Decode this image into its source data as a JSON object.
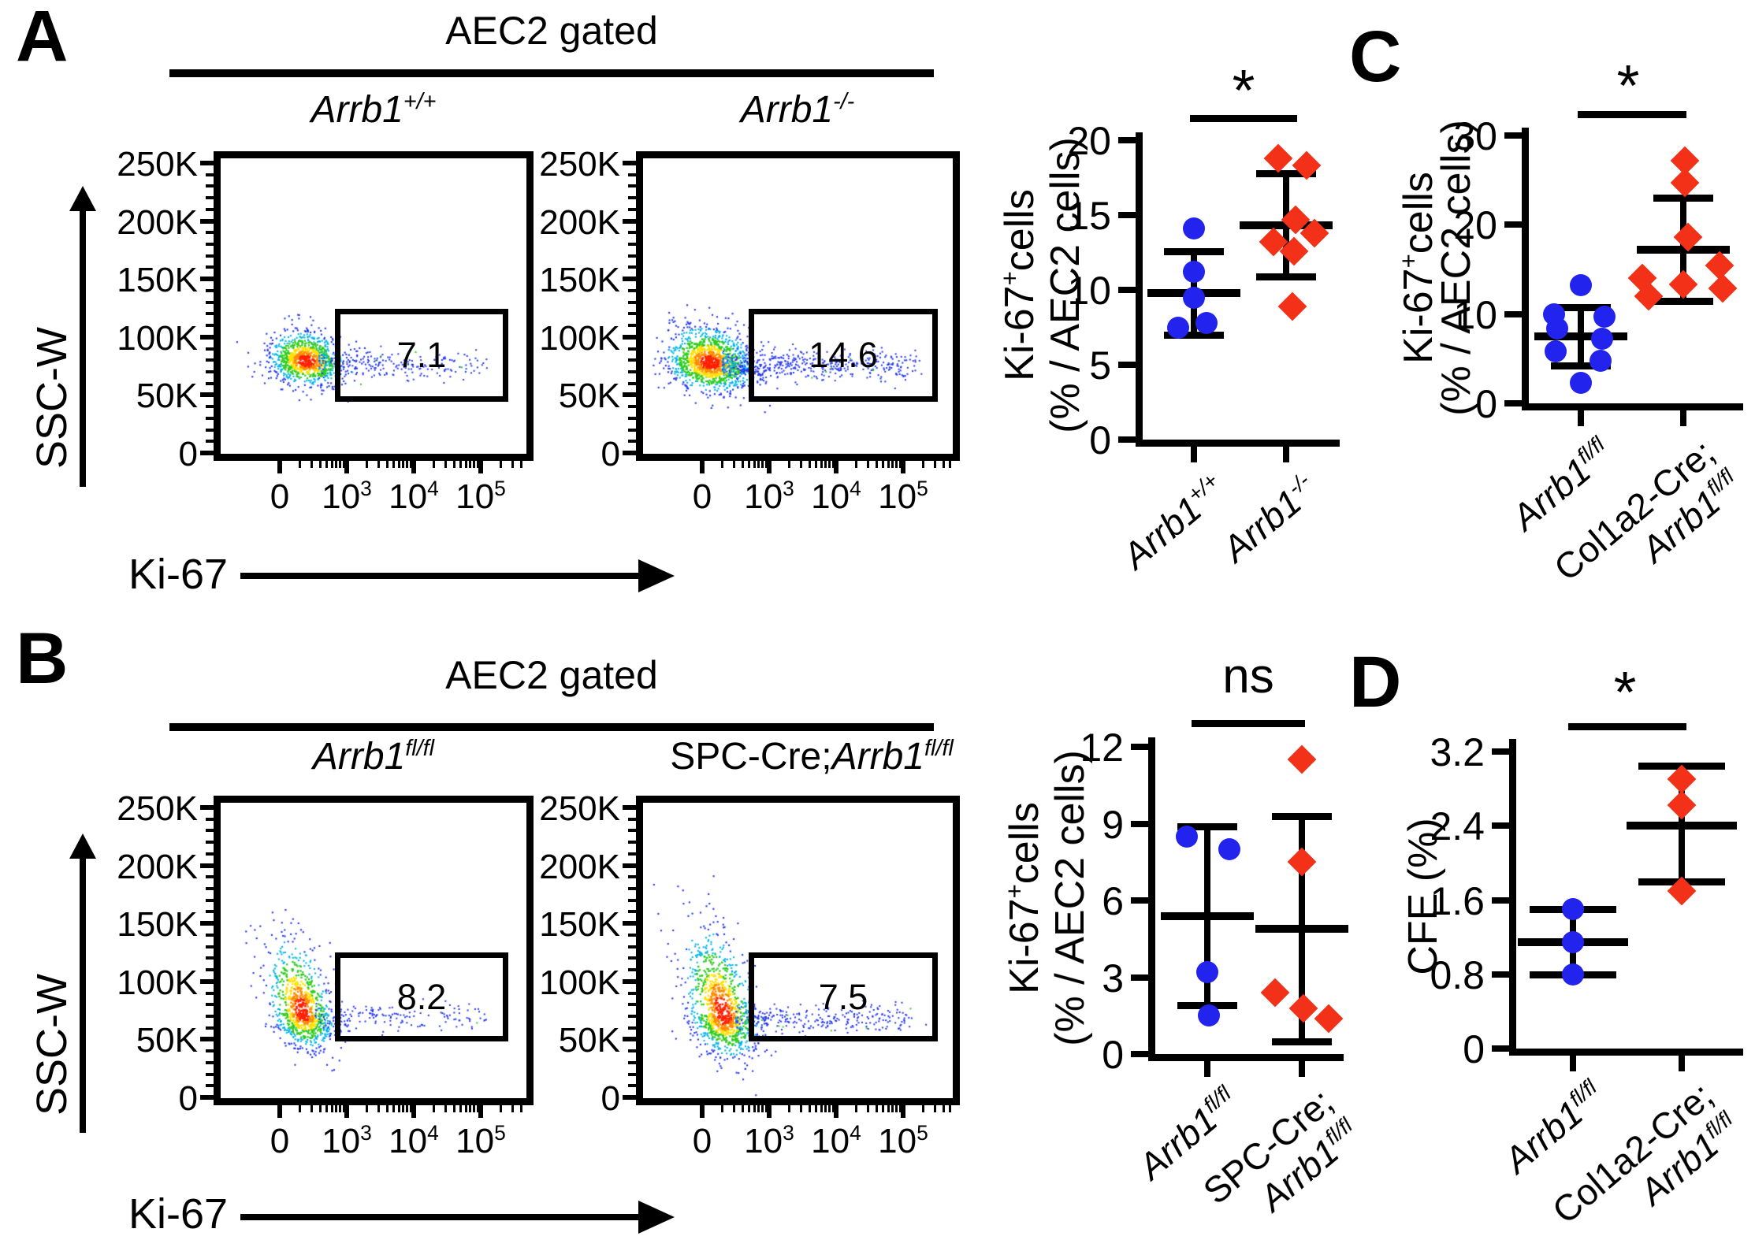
{
  "colors": {
    "dot_blue": "#2323ee",
    "dot_red": "#f23118",
    "ink": "#000000"
  },
  "panels": {
    "A": {
      "letter": "A",
      "header": "AEC2 gated"
    },
    "B": {
      "letter": "B",
      "header": "AEC2 gated"
    },
    "C": {
      "letter": "C"
    },
    "D": {
      "letter": "D"
    }
  },
  "flow_axis": {
    "x_label": "Ki-67",
    "y_label": "SSC-W"
  },
  "chart_data": [
    {
      "id": "flow-a-wildtype",
      "type": "heatmap",
      "panel": "A",
      "title": [
        {
          "t": "Arrb1",
          "i": 1
        },
        {
          "t": "+/+",
          "i": 1,
          "sup": 1
        }
      ],
      "x_axis": "Ki-67",
      "y_axis": "SSC-W",
      "y_tick_labels": [
        "250K",
        "200K",
        "150K",
        "100K",
        "50K",
        "0"
      ],
      "x_tick_labels": [
        [
          {
            "t": "0"
          }
        ],
        [
          {
            "t": "10"
          },
          {
            "t": "3",
            "sup": 1
          }
        ],
        [
          {
            "t": "10"
          },
          {
            "t": "4",
            "sup": 1
          }
        ],
        [
          {
            "t": "10"
          },
          {
            "t": "5",
            "sup": 1
          }
        ]
      ],
      "gate_percent": "7.1"
    },
    {
      "id": "flow-a-knockout",
      "type": "heatmap",
      "panel": "A",
      "title": [
        {
          "t": "Arrb1",
          "i": 1
        },
        {
          "t": "-/-",
          "i": 1,
          "sup": 1
        }
      ],
      "x_axis": "Ki-67",
      "y_axis": "SSC-W",
      "y_tick_labels": [
        "250K",
        "200K",
        "150K",
        "100K",
        "50K",
        "0"
      ],
      "x_tick_labels": [
        [
          {
            "t": "0"
          }
        ],
        [
          {
            "t": "10"
          },
          {
            "t": "3",
            "sup": 1
          }
        ],
        [
          {
            "t": "10"
          },
          {
            "t": "4",
            "sup": 1
          }
        ],
        [
          {
            "t": "10"
          },
          {
            "t": "5",
            "sup": 1
          }
        ]
      ],
      "gate_percent": "14.6"
    },
    {
      "id": "scatter-a",
      "type": "scatter",
      "panel": "A",
      "significance": "*",
      "ylabel_lines": [
        [
          {
            "t": "Ki-67"
          },
          {
            "t": "+",
            "sup": 1
          },
          {
            "t": "cells"
          }
        ],
        [
          {
            "t": "(% / AEC2 cells)"
          }
        ]
      ],
      "ylim": [
        0,
        20
      ],
      "yticks": [
        "0",
        "5",
        "10",
        "15",
        "20"
      ],
      "groups": [
        {
          "label_lines": [
            [
              {
                "t": "Arrb1",
                "i": 1
              },
              {
                "t": "+/+",
                "i": 1,
                "sup": 1
              }
            ]
          ],
          "marker": "circle",
          "color": "#2323ee",
          "values": [
            14.1,
            11.2,
            9.5,
            7.5,
            7.8
          ],
          "dx": [
            0,
            0,
            0,
            -20,
            16
          ],
          "mean": 9.8,
          "sd_top": 12.6,
          "sd_bottom": 7.0
        },
        {
          "label_lines": [
            [
              {
                "t": "Arrb1",
                "i": 1
              },
              {
                "t": "-/-",
                "i": 1,
                "sup": 1
              }
            ]
          ],
          "marker": "diamond",
          "color": "#f23118",
          "values": [
            18.8,
            18.3,
            14.7,
            13.8,
            13.2,
            12.6,
            8.9
          ],
          "dx": [
            -10,
            26,
            12,
            36,
            -16,
            10,
            8
          ],
          "mean": 14.3,
          "sd_top": 17.8,
          "sd_bottom": 10.9
        }
      ]
    },
    {
      "id": "flow-b-floxed",
      "type": "heatmap",
      "panel": "B",
      "title": [
        {
          "t": "Arrb1",
          "i": 1
        },
        {
          "t": "fl/fl",
          "i": 1,
          "sup": 1
        }
      ],
      "x_axis": "Ki-67",
      "y_axis": "SSC-W",
      "y_tick_labels": [
        "250K",
        "200K",
        "150K",
        "100K",
        "50K",
        "0"
      ],
      "x_tick_labels": [
        [
          {
            "t": "0"
          }
        ],
        [
          {
            "t": "10"
          },
          {
            "t": "3",
            "sup": 1
          }
        ],
        [
          {
            "t": "10"
          },
          {
            "t": "4",
            "sup": 1
          }
        ],
        [
          {
            "t": "10"
          },
          {
            "t": "5",
            "sup": 1
          }
        ]
      ],
      "gate_percent": "8.2"
    },
    {
      "id": "flow-b-spc-cre",
      "type": "heatmap",
      "panel": "B",
      "title": [
        {
          "t": "SPC-Cre;"
        },
        {
          "t": "Arrb1",
          "i": 1
        },
        {
          "t": "fl/fl",
          "i": 1,
          "sup": 1
        }
      ],
      "x_axis": "Ki-67",
      "y_axis": "SSC-W",
      "y_tick_labels": [
        "250K",
        "200K",
        "150K",
        "100K",
        "50K",
        "0"
      ],
      "x_tick_labels": [
        [
          {
            "t": "0"
          }
        ],
        [
          {
            "t": "10"
          },
          {
            "t": "3",
            "sup": 1
          }
        ],
        [
          {
            "t": "10"
          },
          {
            "t": "4",
            "sup": 1
          }
        ],
        [
          {
            "t": "10"
          },
          {
            "t": "5",
            "sup": 1
          }
        ]
      ],
      "gate_percent": "7.5"
    },
    {
      "id": "scatter-b",
      "type": "scatter",
      "panel": "B",
      "significance": "ns",
      "ylabel_lines": [
        [
          {
            "t": "Ki-67"
          },
          {
            "t": "+",
            "sup": 1
          },
          {
            "t": "cells"
          }
        ],
        [
          {
            "t": "(% / AEC2 cells)"
          }
        ]
      ],
      "ylim": [
        0,
        12
      ],
      "yticks": [
        "0",
        "3",
        "6",
        "9",
        "12"
      ],
      "groups": [
        {
          "label_lines": [
            [
              {
                "t": "Arrb1",
                "i": 1
              },
              {
                "t": "fl/fl",
                "i": 1,
                "sup": 1
              }
            ]
          ],
          "marker": "circle",
          "color": "#2323ee",
          "values": [
            8.5,
            8.0,
            3.2,
            1.5
          ],
          "dx": [
            -26,
            28,
            0,
            2
          ],
          "mean": 5.4,
          "sd_top": 8.9,
          "sd_bottom": 1.9
        },
        {
          "label_lines": [
            [
              {
                "t": "SPC-Cre;"
              }
            ],
            [
              {
                "t": "Arrb1",
                "i": 1
              },
              {
                "t": "fl/fl",
                "i": 1,
                "sup": 1
              }
            ]
          ],
          "marker": "diamond",
          "color": "#f23118",
          "values": [
            11.5,
            7.5,
            2.4,
            1.8,
            1.4
          ],
          "dx": [
            0,
            0,
            -34,
            2,
            34
          ],
          "mean": 4.9,
          "sd_top": 9.3,
          "sd_bottom": 0.5
        }
      ]
    },
    {
      "id": "scatter-c",
      "type": "scatter",
      "panel": "C",
      "significance": "*",
      "ylabel_lines": [
        [
          {
            "t": "Ki-67"
          },
          {
            "t": "+",
            "sup": 1
          },
          {
            "t": "cells"
          }
        ],
        [
          {
            "t": "(% / AEC2 cells)"
          }
        ]
      ],
      "ylim": [
        0,
        30
      ],
      "yticks": [
        "0",
        "10",
        "20",
        "30"
      ],
      "groups": [
        {
          "label_lines": [
            [
              {
                "t": "Arrb1",
                "i": 1
              },
              {
                "t": "fl/fl",
                "i": 1,
                "sup": 1
              }
            ]
          ],
          "marker": "circle",
          "color": "#2323ee",
          "values": [
            13.2,
            10.0,
            9.7,
            8.4,
            7.2,
            5.8,
            4.8,
            2.3
          ],
          "dx": [
            0,
            -34,
            30,
            -30,
            27,
            -32,
            25,
            0
          ],
          "mean": 7.5,
          "sd_top": 10.8,
          "sd_bottom": 4.2
        },
        {
          "label_lines": [
            [
              {
                "t": "Col1a2-Cre;"
              }
            ],
            [
              {
                "t": "Arrb1",
                "i": 1
              },
              {
                "t": "fl/fl",
                "i": 1,
                "sup": 1
              }
            ]
          ],
          "marker": "diamond",
          "color": "#f23118",
          "values": [
            27.2,
            24.7,
            18.6,
            15.4,
            14.0,
            13.3,
            12.9,
            12.0
          ],
          "dx": [
            2,
            2,
            6,
            46,
            -52,
            0,
            50,
            -44
          ],
          "mean": 17.2,
          "sd_top": 23.0,
          "sd_bottom": 11.5
        }
      ]
    },
    {
      "id": "scatter-d",
      "type": "scatter",
      "panel": "D",
      "significance": "*",
      "ylabel_lines": [
        [
          {
            "t": "CFE (%)"
          }
        ]
      ],
      "ylim": [
        0,
        3.2
      ],
      "yticks": [
        "0",
        "0.8",
        "1.6",
        "2.4",
        "3.2"
      ],
      "groups": [
        {
          "label_lines": [
            [
              {
                "t": "Arrb1",
                "i": 1
              },
              {
                "t": "fl/fl",
                "i": 1,
                "sup": 1
              }
            ]
          ],
          "marker": "circle",
          "color": "#2323ee",
          "values": [
            1.5,
            1.15,
            0.8
          ],
          "dx": [
            0,
            0,
            0
          ],
          "mean": 1.15,
          "sd_top": 1.5,
          "sd_bottom": 0.8
        },
        {
          "label_lines": [
            [
              {
                "t": "Col1a2-Cre;"
              }
            ],
            [
              {
                "t": "Arrb1",
                "i": 1
              },
              {
                "t": "fl/fl",
                "i": 1,
                "sup": 1
              }
            ]
          ],
          "marker": "diamond",
          "color": "#f23118",
          "values": [
            2.9,
            2.62,
            1.7
          ],
          "dx": [
            0,
            0,
            0
          ],
          "mean": 2.4,
          "sd_top": 3.05,
          "sd_bottom": 1.8
        }
      ]
    }
  ]
}
